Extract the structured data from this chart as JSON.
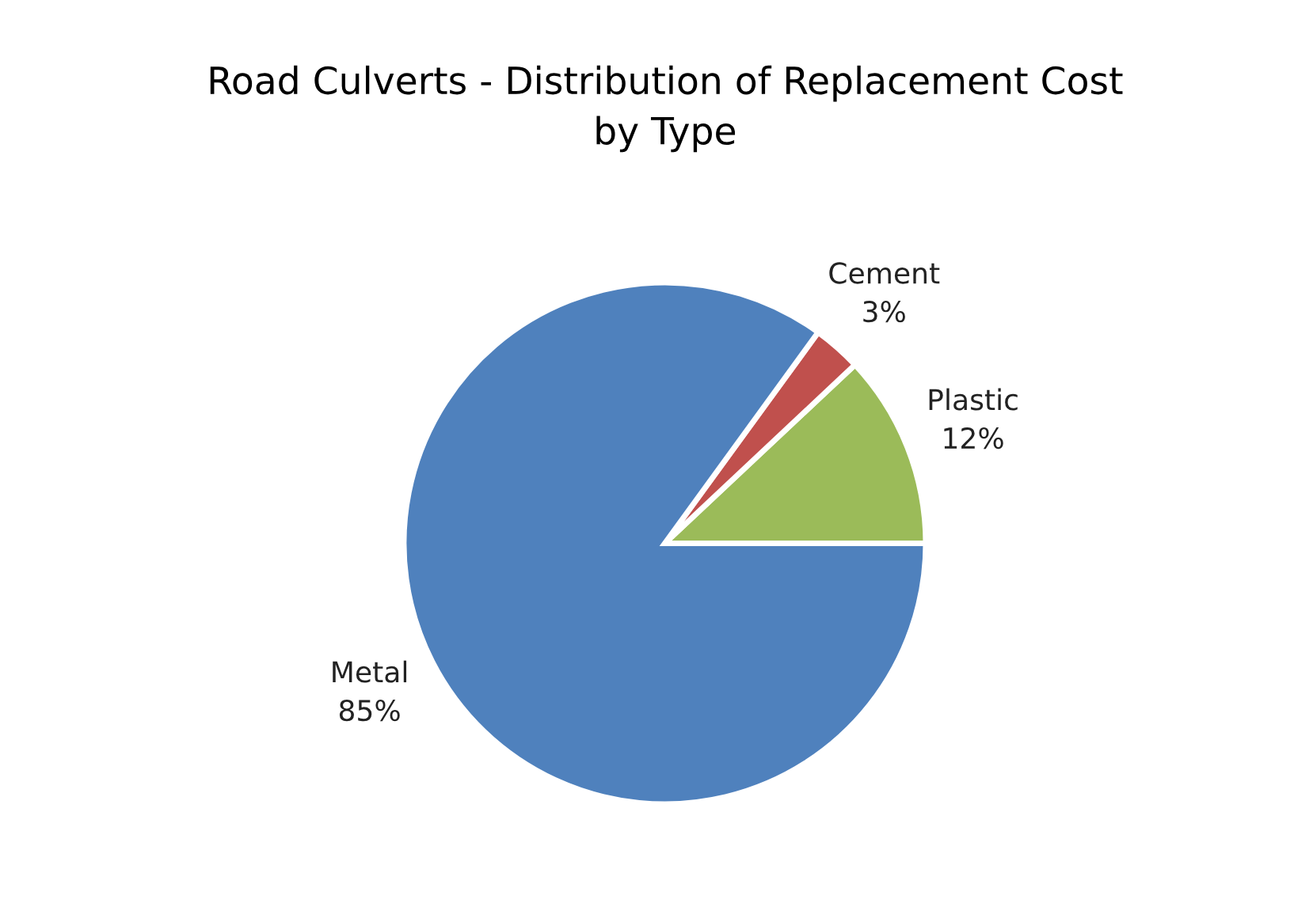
{
  "chart_data": {
    "type": "pie",
    "title": "Road Culverts - Distribution of Replacement Cost\nby Type",
    "categories": [
      "Plastic",
      "Cement",
      "Metal"
    ],
    "values": [
      12,
      3,
      85
    ],
    "colors": [
      "#9bbb59",
      "#c0504d",
      "#4f81bd"
    ],
    "value_labels": [
      "12%",
      "3%",
      "85%"
    ],
    "legend": false
  }
}
